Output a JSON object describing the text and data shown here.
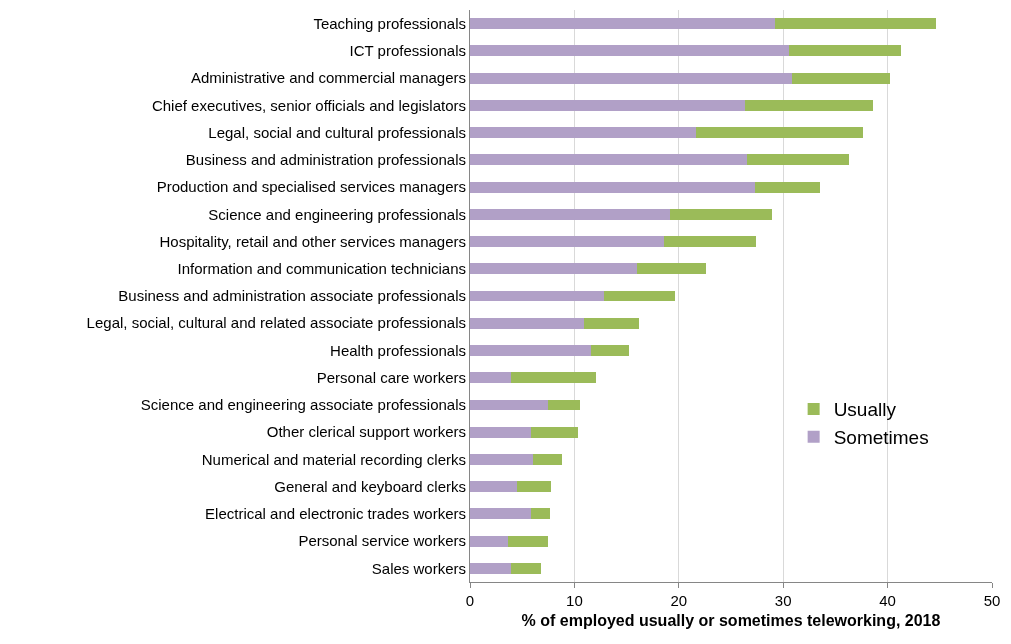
{
  "chart_data": {
    "type": "bar",
    "orientation": "horizontal",
    "stacked": true,
    "categories": [
      "Teaching professionals",
      "ICT professionals",
      "Administrative and commercial managers",
      "Chief executives, senior officials and legislators",
      "Legal, social and cultural professionals",
      "Business and administration professionals",
      "Production and specialised services managers",
      "Science and engineering professionals",
      "Hospitality, retail and other services managers",
      "Information and communication technicians",
      "Business and administration associate professionals",
      "Legal, social, cultural and related associate professionals",
      "Health professionals",
      "Personal care workers",
      "Science and engineering associate professionals",
      "Other clerical support workers",
      "Numerical and material recording clerks",
      "General and keyboard clerks",
      "Electrical and electronic trades workers",
      "Personal service workers",
      "Sales workers"
    ],
    "series": [
      {
        "name": "Sometimes",
        "color": "#b1a0c7",
        "values": [
          29.2,
          30.6,
          30.8,
          26.3,
          21.6,
          26.5,
          27.3,
          19.2,
          18.6,
          16.0,
          12.8,
          10.9,
          11.6,
          3.9,
          7.5,
          5.8,
          6.0,
          4.5,
          5.8,
          3.6,
          3.9
        ]
      },
      {
        "name": "Usually",
        "color": "#9bbb59",
        "values": [
          15.4,
          10.7,
          9.4,
          12.3,
          16.0,
          9.8,
          6.2,
          9.7,
          8.8,
          6.6,
          6.8,
          5.3,
          3.6,
          8.2,
          3.0,
          4.5,
          2.8,
          3.3,
          1.9,
          3.9,
          2.9
        ]
      }
    ],
    "xlabel": "% of employed usually or sometimes teleworking, 2018",
    "xlim": [
      0,
      50
    ],
    "xticks": [
      0,
      10,
      20,
      30,
      40,
      50
    ],
    "grid": "x",
    "legend": "bottom right"
  }
}
